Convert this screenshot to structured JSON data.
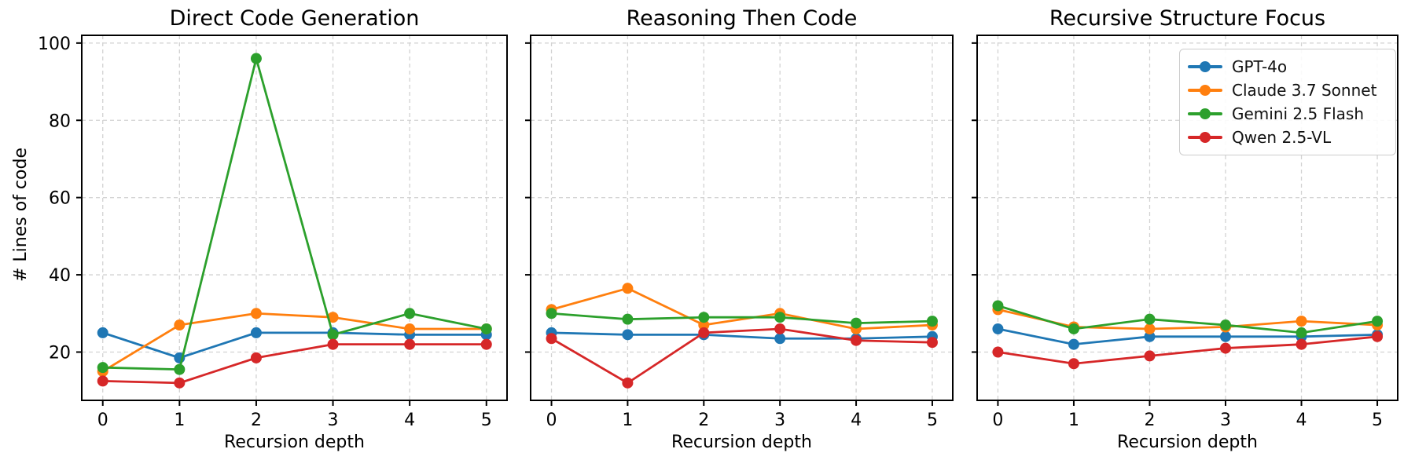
{
  "figure": {
    "background": "#ffffff",
    "text_color": "#000000",
    "grid_color": "#d2d2d2",
    "spine_color": "#000000"
  },
  "legend": {
    "location": "upper right (third panel)",
    "entries": [
      {
        "label": "GPT-4o",
        "color": "#1f77b4"
      },
      {
        "label": "Claude 3.7 Sonnet",
        "color": "#ff7f0e"
      },
      {
        "label": "Gemini 2.5 Flash",
        "color": "#2ca02c"
      },
      {
        "label": "Qwen 2.5-VL",
        "color": "#d62728"
      }
    ]
  },
  "chart_data": [
    {
      "type": "line",
      "title": "Direct Code Generation",
      "xlabel": "Recursion depth",
      "ylabel": "# Lines of code",
      "x": [
        0,
        1,
        2,
        3,
        4,
        5
      ],
      "xticks": [
        0,
        1,
        2,
        3,
        4,
        5
      ],
      "yticks": [
        20,
        40,
        60,
        80,
        100
      ],
      "ytick_labels_visible": true,
      "ylim": [
        7.5,
        102
      ],
      "grid": true,
      "series": [
        {
          "name": "GPT-4o",
          "color": "#1f77b4",
          "values": [
            25,
            18.5,
            25,
            25,
            24.5,
            24.5
          ]
        },
        {
          "name": "Claude 3.7 Sonnet",
          "color": "#ff7f0e",
          "values": [
            15,
            27,
            30,
            29,
            26,
            26
          ]
        },
        {
          "name": "Gemini 2.5 Flash",
          "color": "#2ca02c",
          "values": [
            16,
            15.5,
            96,
            24.5,
            30,
            26
          ]
        },
        {
          "name": "Qwen 2.5-VL",
          "color": "#d62728",
          "values": [
            12.5,
            12,
            18.5,
            22,
            22,
            22
          ]
        }
      ]
    },
    {
      "type": "line",
      "title": "Reasoning Then Code",
      "xlabel": "Recursion depth",
      "ylabel": "",
      "x": [
        0,
        1,
        2,
        3,
        4,
        5
      ],
      "xticks": [
        0,
        1,
        2,
        3,
        4,
        5
      ],
      "yticks": [
        20,
        40,
        60,
        80,
        100
      ],
      "ytick_labels_visible": false,
      "ylim": [
        7.5,
        102
      ],
      "grid": true,
      "series": [
        {
          "name": "GPT-4o",
          "color": "#1f77b4",
          "values": [
            25,
            24.5,
            24.5,
            23.5,
            23.5,
            24
          ]
        },
        {
          "name": "Claude 3.7 Sonnet",
          "color": "#ff7f0e",
          "values": [
            31,
            36.5,
            27,
            30,
            26,
            27
          ]
        },
        {
          "name": "Gemini 2.5 Flash",
          "color": "#2ca02c",
          "values": [
            30,
            28.5,
            29,
            29,
            27.5,
            28
          ]
        },
        {
          "name": "Qwen 2.5-VL",
          "color": "#d62728",
          "values": [
            23.5,
            12,
            25,
            26,
            23,
            22.5
          ]
        }
      ]
    },
    {
      "type": "line",
      "title": "Recursive Structure Focus",
      "xlabel": "Recursion depth",
      "ylabel": "",
      "x": [
        0,
        1,
        2,
        3,
        4,
        5
      ],
      "xticks": [
        0,
        1,
        2,
        3,
        4,
        5
      ],
      "yticks": [
        20,
        40,
        60,
        80,
        100
      ],
      "ytick_labels_visible": false,
      "ylim": [
        7.5,
        102
      ],
      "grid": true,
      "series": [
        {
          "name": "GPT-4o",
          "color": "#1f77b4",
          "values": [
            26,
            22,
            24,
            24,
            24,
            24.5
          ]
        },
        {
          "name": "Claude 3.7 Sonnet",
          "color": "#ff7f0e",
          "values": [
            31,
            26.5,
            26,
            26.5,
            28,
            27
          ]
        },
        {
          "name": "Gemini 2.5 Flash",
          "color": "#2ca02c",
          "values": [
            32,
            26,
            28.5,
            27,
            25,
            28
          ]
        },
        {
          "name": "Qwen 2.5-VL",
          "color": "#d62728",
          "values": [
            20,
            17,
            19,
            21,
            22,
            24
          ]
        }
      ]
    }
  ]
}
